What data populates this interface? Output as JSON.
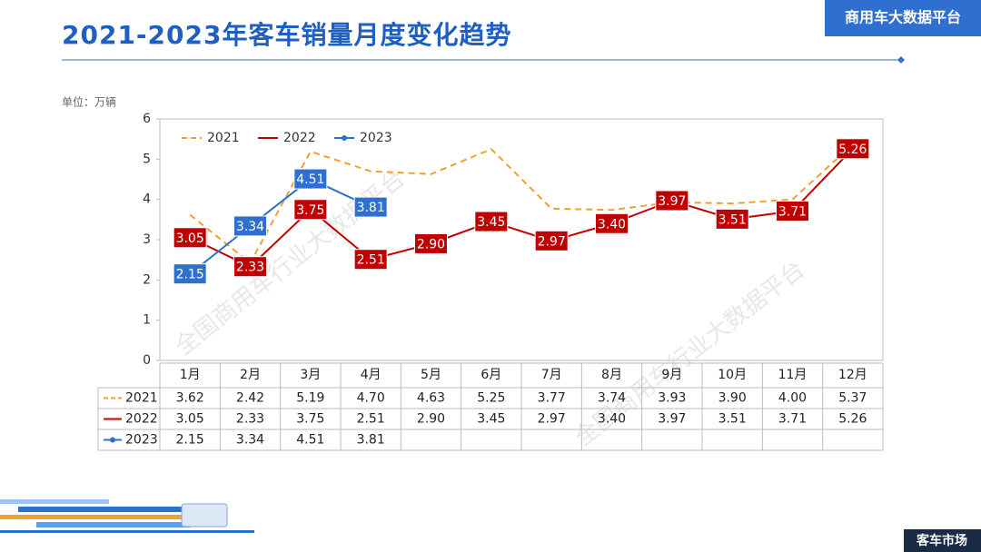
{
  "header": {
    "title": "2021-2023年客车销量月度变化趋势",
    "badge": "商用车大数据平台"
  },
  "footer": {
    "tag": "客车市场"
  },
  "watermark": "全国商用车行业大数据平台",
  "chart_data": {
    "type": "line",
    "unit_label": "单位：万辆",
    "categories": [
      "1月",
      "2月",
      "3月",
      "4月",
      "5月",
      "6月",
      "7月",
      "8月",
      "9月",
      "10月",
      "11月",
      "12月"
    ],
    "ylim": [
      0,
      6
    ],
    "yticks": [
      0,
      1,
      2,
      3,
      4,
      5,
      6
    ],
    "grid": false,
    "legend": "top-left",
    "series": [
      {
        "name": "2021",
        "color": "#f0a030",
        "dashed": true,
        "labeled": false,
        "values": [
          3.62,
          2.42,
          5.19,
          4.7,
          4.63,
          5.25,
          3.77,
          3.74,
          3.93,
          3.9,
          4.0,
          5.37
        ],
        "value_labels": [
          "3.62",
          "2.42",
          "5.19",
          "4.70",
          "4.63",
          "5.25",
          "3.77",
          "3.74",
          "3.93",
          "3.90",
          "4.00",
          "5.37"
        ]
      },
      {
        "name": "2022",
        "color": "#c00000",
        "dashed": false,
        "labeled": true,
        "values": [
          3.05,
          2.33,
          3.75,
          2.51,
          2.9,
          3.45,
          2.97,
          3.4,
          3.97,
          3.51,
          3.71,
          5.26
        ],
        "value_labels": [
          "3.05",
          "2.33",
          "3.75",
          "2.51",
          "2.90",
          "3.45",
          "2.97",
          "3.40",
          "3.97",
          "3.51",
          "3.71",
          "5.26"
        ]
      },
      {
        "name": "2023",
        "color": "#2e6fd0",
        "dashed": false,
        "labeled": true,
        "markers": true,
        "values": [
          2.15,
          3.34,
          4.51,
          3.81,
          null,
          null,
          null,
          null,
          null,
          null,
          null,
          null
        ],
        "value_labels": [
          "2.15",
          "3.34",
          "4.51",
          "3.81",
          null,
          null,
          null,
          null,
          null,
          null,
          null,
          null
        ]
      }
    ]
  }
}
